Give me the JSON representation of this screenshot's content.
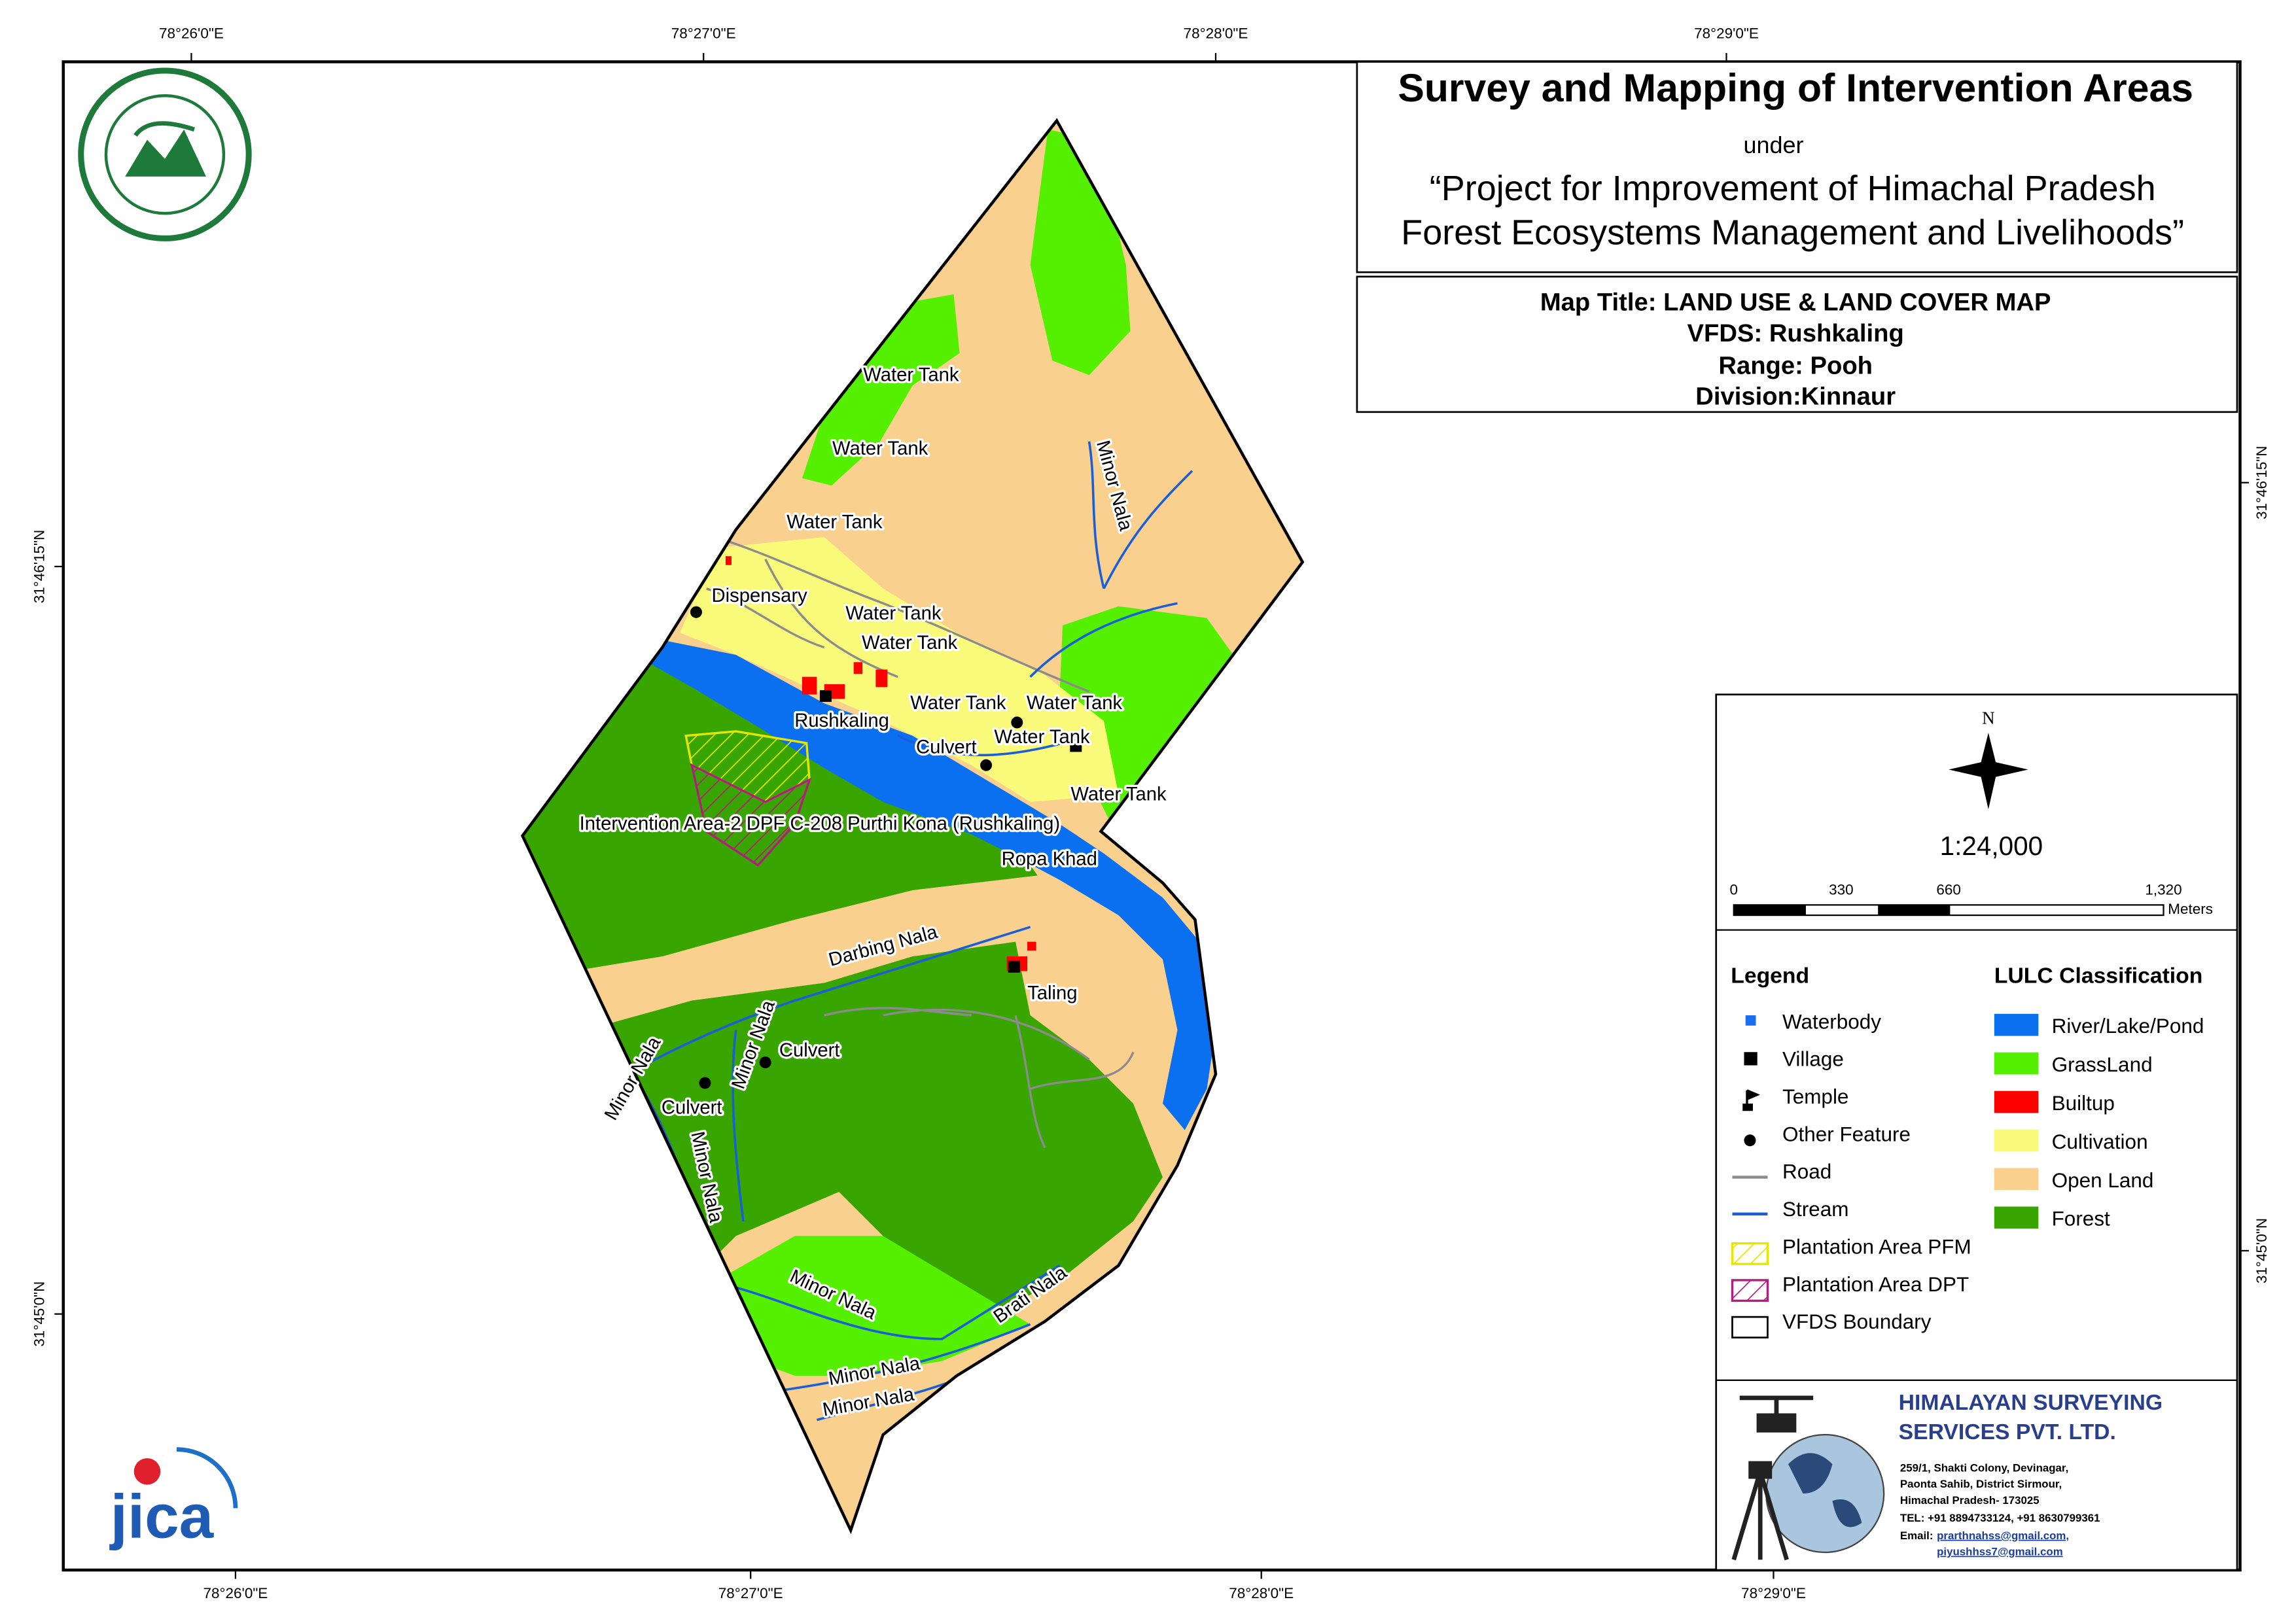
{
  "header": {
    "title": "Survey and Mapping of Intervention Areas",
    "under": "under",
    "project_line1": "“Project for Improvement of Himachal Pradesh",
    "project_line2": "Forest Ecosystems Management and Livelihoods”"
  },
  "map_info": {
    "map_title": "Map Title: LAND USE & LAND COVER MAP",
    "vfds": "VFDS: Rushkaling",
    "range": "Range: Pooh",
    "division": "Division:Kinnaur"
  },
  "logos": {
    "jica": "jica"
  },
  "grid_labels": {
    "top": [
      "78°26'0\"E",
      "78°27'0\"E",
      "78°28'0\"E",
      "78°29'0\"E"
    ],
    "bottom": [
      "78°26'0\"E",
      "78°27'0\"E",
      "78°28'0\"E",
      "78°29'0\"E"
    ],
    "left": [
      "31°46'15\"N",
      "31°45'0\"N"
    ],
    "right": [
      "31°46'15\"N",
      "31°45'0\"N"
    ]
  },
  "map_labels": [
    "Water Tank",
    "Water Tank",
    "Water Tank",
    "Dispensary",
    "Water Tank",
    "Water Tank",
    "Rushkaling",
    "Water Tank",
    "Water Tank",
    "Water Tank",
    "Culvert",
    "Water Tank",
    "Intervention Area-2 DPF C-208 Purthi Kona (Rushkaling)",
    "Ropa Khad",
    "Darbing Nala",
    "Taling",
    "Culvert",
    "Minor Nala",
    "Minor Nala",
    "Culvert",
    "Minor Nala",
    "Minor Nala",
    "Brati Nala",
    "Minor Nala",
    "Minor Nala",
    "Minor Nala"
  ],
  "north": "N",
  "scale": "1:24,000",
  "scale_bar": {
    "ticks": [
      "0",
      "330",
      "660",
      "1,320"
    ],
    "unit": "Meters"
  },
  "legend": {
    "title": "Legend",
    "items": [
      "Waterbody",
      "Village",
      "Temple",
      "Other Feature",
      "Road",
      "Stream",
      "Plantation Area PFM",
      "Plantation Area DPT",
      "VFDS Boundary"
    ]
  },
  "lulc": {
    "title": "LULC Classification",
    "items": [
      {
        "label": "River/Lake/Pond",
        "color": "#0a70f0"
      },
      {
        "label": "GrassLand",
        "color": "#55f000"
      },
      {
        "label": "Builtup",
        "color": "#ff0000"
      },
      {
        "label": "Cultivation",
        "color": "#fafa7a"
      },
      {
        "label": "Open Land",
        "color": "#fad08f"
      },
      {
        "label": "Forest",
        "color": "#38a500"
      }
    ]
  },
  "company": {
    "name_line1": "HIMALAYAN SURVEYING",
    "name_line2": "SERVICES PVT. LTD.",
    "address": [
      "259/1, Shakti Colony, Devinagar,",
      "Paonta Sahib, District Sirmour,",
      "Himachal Pradesh- 173025"
    ],
    "tel": "TEL: +91 8894733124, +91 8630799361",
    "email_label": "Email:",
    "emails": [
      "prarthnahss@gmail.com,",
      "piyushhss7@gmail.com"
    ]
  }
}
